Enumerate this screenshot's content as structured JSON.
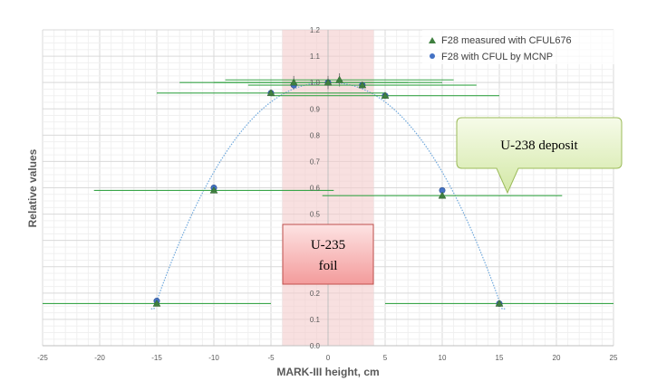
{
  "chart_data": {
    "type": "scatter",
    "xlabel": "MARK-III height, cm",
    "ylabel": "Relative values",
    "xlim": [
      -25,
      25
    ],
    "ylim": [
      0.0,
      1.2
    ],
    "x_ticks": [
      -25,
      -20,
      -15,
      -10,
      -5,
      0,
      5,
      10,
      15,
      20,
      25
    ],
    "y_ticks": [
      "0.0",
      "0.1",
      "0.2",
      "0.3",
      "0.4",
      "0.5",
      "0.6",
      "0.7",
      "0.8",
      "0.9",
      "1.0",
      "1.1",
      "1.2"
    ],
    "grid": true,
    "legend_position": "top-right",
    "series": [
      {
        "name": "F28 measured with CFUL676",
        "marker": "triangle",
        "color": "#3f7f3f",
        "points": [
          {
            "x": -15,
            "y": 0.16,
            "x_err_left": 10,
            "x_err_right": 10
          },
          {
            "x": -10,
            "y": 0.59,
            "x_err_left": 10.5,
            "x_err_right": 10.5
          },
          {
            "x": -5,
            "y": 0.96,
            "x_err_left": 10,
            "x_err_right": 10
          },
          {
            "x": -3,
            "y": 1.0,
            "x_err_left": 10,
            "x_err_right": 10,
            "y_err": 0.025
          },
          {
            "x": 0,
            "y": 1.0,
            "x_err_left": 10,
            "x_err_right": 10,
            "y_err": 0.025
          },
          {
            "x": 1,
            "y": 1.01,
            "x_err_left": 10,
            "x_err_right": 10,
            "y_err": 0.025
          },
          {
            "x": 3,
            "y": 0.99,
            "x_err_left": 10,
            "x_err_right": 10
          },
          {
            "x": 5,
            "y": 0.95,
            "x_err_left": 10,
            "x_err_right": 10
          },
          {
            "x": 10,
            "y": 0.57,
            "x_err_left": 10.5,
            "x_err_right": 10.5
          },
          {
            "x": 15,
            "y": 0.16,
            "x_err_left": 10,
            "x_err_right": 10
          }
        ]
      },
      {
        "name": "F28 with CFUL by MCNP",
        "marker": "circle",
        "color": "#4472c4",
        "points": [
          {
            "x": -15,
            "y": 0.17
          },
          {
            "x": -10,
            "y": 0.6
          },
          {
            "x": -5,
            "y": 0.96
          },
          {
            "x": -3,
            "y": 0.99
          },
          {
            "x": 0,
            "y": 1.0
          },
          {
            "x": 3,
            "y": 0.99
          },
          {
            "x": 5,
            "y": 0.95
          },
          {
            "x": 10,
            "y": 0.59
          },
          {
            "x": 15,
            "y": 0.16
          }
        ]
      }
    ],
    "fit_curve": {
      "style": "dotted",
      "color": "#6fa8dc"
    },
    "shaded_region": {
      "x_from": -4,
      "x_to": 4,
      "color": "#f4cccc"
    },
    "annotations": [
      {
        "text_lines": [
          "U-235",
          "foil"
        ],
        "style": "red-box"
      },
      {
        "text_lines": [
          "U-238 deposit"
        ],
        "style": "green-callout"
      }
    ]
  }
}
